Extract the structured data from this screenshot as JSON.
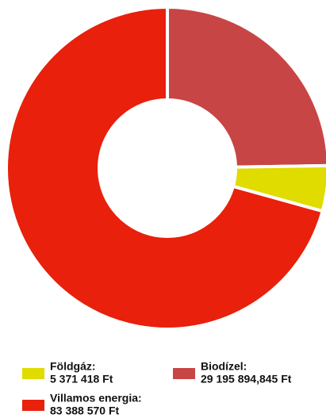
{
  "chart_data": {
    "type": "pie",
    "series": [
      {
        "name": "Biodízel:",
        "color": "#c84545",
        "values": [
          29195894.845
        ],
        "value_labels": [
          "29 195 894,845 Ft"
        ]
      },
      {
        "name": "Földgáz:",
        "color": "#e0dc00",
        "values": [
          5371418
        ],
        "value_labels": [
          "5 371 418 Ft"
        ]
      },
      {
        "name": "Villamos energia:",
        "color": "#e8200c",
        "values": [
          83388570
        ],
        "value_labels": [
          "83 388 570 Ft"
        ]
      }
    ]
  }
}
